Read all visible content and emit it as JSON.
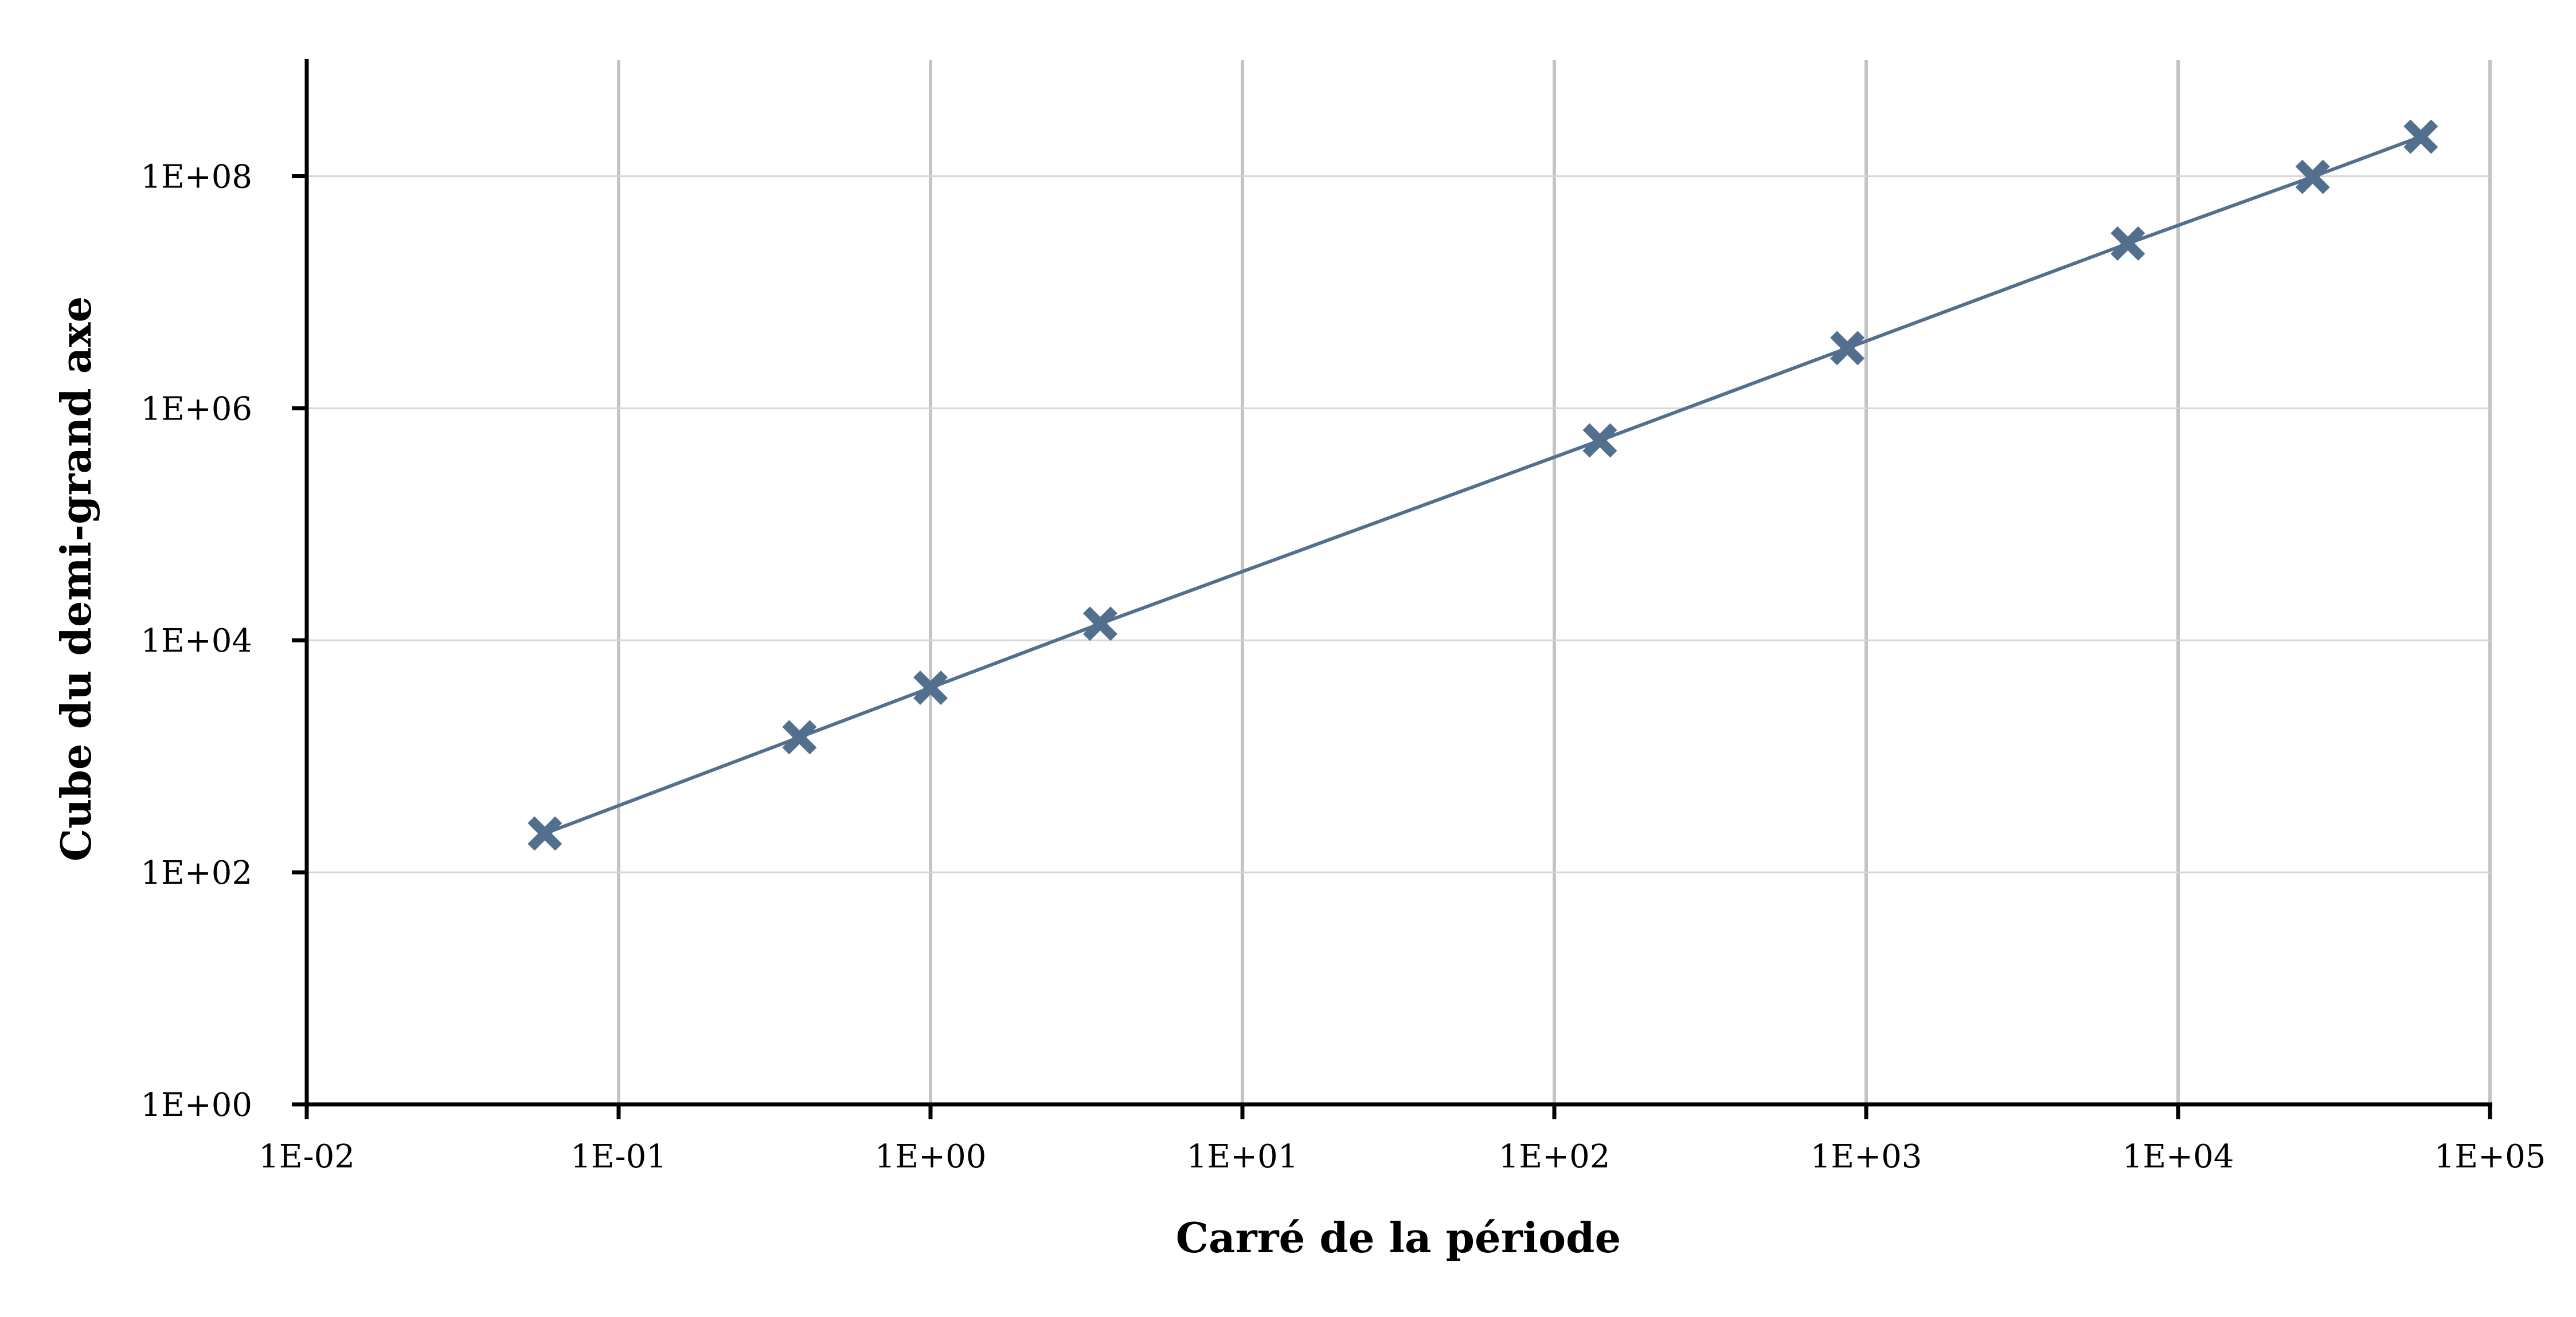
{
  "chart_data": {
    "type": "scatter",
    "title": "",
    "xlabel": "Carré de la période",
    "ylabel": "Cube du demi-grand axe",
    "x_scale": "log",
    "y_scale": "log",
    "xlim": [
      0.01,
      100000
    ],
    "ylim": [
      1,
      1000000000
    ],
    "x_ticks": [
      0.01,
      0.1,
      1,
      10,
      100,
      1000,
      10000,
      100000
    ],
    "x_tick_labels": [
      "1E-02",
      "1E-01",
      "1E+00",
      "1E+01",
      "1E+02",
      "1E+03",
      "1E+04",
      "1E+05"
    ],
    "y_ticks": [
      1,
      100,
      10000,
      1000000,
      100000000
    ],
    "y_tick_labels": [
      "1E+00",
      "1E+02",
      "1E+04",
      "1E+06",
      "1E+08"
    ],
    "grid": {
      "x_major": true,
      "y_major": true
    },
    "legend": "none",
    "marker": "x",
    "series": [
      {
        "color": "#52708d",
        "x": [
          0.058,
          0.38,
          1,
          3.5,
          140,
          870,
          6900.0,
          27000.0,
          60000.0
        ],
        "y": [
          216,
          1460,
          3900,
          13900.0,
          528000.0,
          3300000.0,
          26300000.0,
          98700000.0,
          219000000.0
        ]
      }
    ]
  }
}
